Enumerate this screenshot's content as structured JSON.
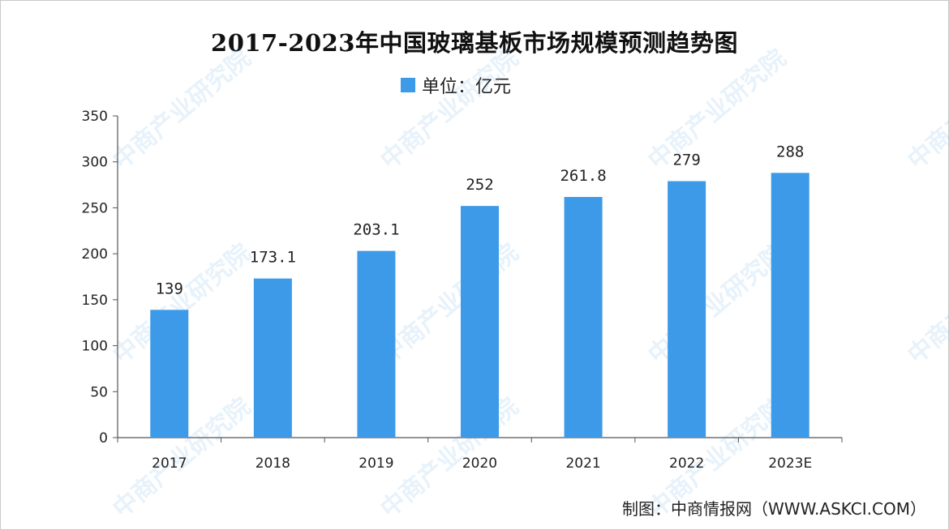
{
  "colors": {
    "bar": "#3d9ae8",
    "axis": "#555555",
    "text": "#222222"
  },
  "chart_data": {
    "type": "bar",
    "title": "2017-2023年中国玻璃基板市场规模预测趋势图",
    "legend": {
      "label": "单位：亿元",
      "position": "top-center"
    },
    "categories": [
      "2017",
      "2018",
      "2019",
      "2020",
      "2021",
      "2022",
      "2023E"
    ],
    "values": [
      139,
      173.1,
      203.1,
      252,
      261.8,
      279,
      288
    ],
    "data_labels": [
      "139",
      "173.1",
      "203.1",
      "252",
      "261.8",
      "279",
      "288"
    ],
    "y_ticks": [
      0,
      50,
      100,
      150,
      200,
      250,
      300,
      350
    ],
    "ylim": [
      0,
      350
    ],
    "xlabel": "",
    "ylabel": "",
    "grid": false
  },
  "source": "制图：中商情报网（WWW.ASKCI.COM）",
  "watermark": "中商产业研究院"
}
